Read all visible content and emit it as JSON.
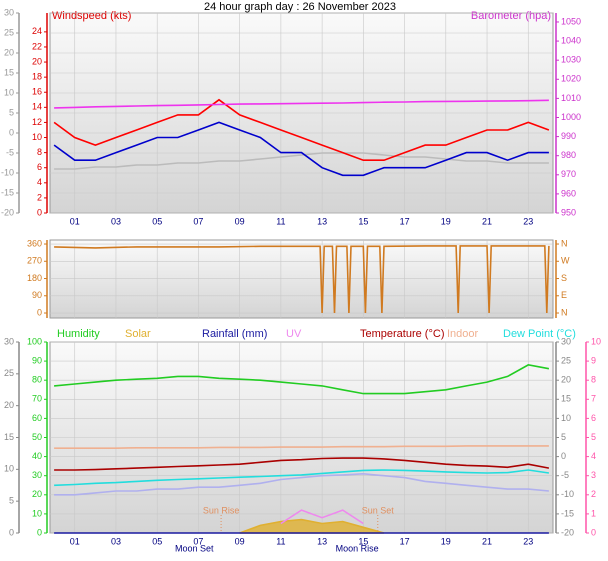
{
  "title": "24 hour graph day : 26 November 2023",
  "chart_data": [
    {
      "type": "line",
      "xlim": [
        -0.2,
        24.2
      ],
      "xticks": [
        {
          "value": 1,
          "label": "01"
        },
        {
          "value": 3,
          "label": "03"
        },
        {
          "value": 5,
          "label": "05"
        },
        {
          "value": 7,
          "label": "07"
        },
        {
          "value": 9,
          "label": "09"
        },
        {
          "value": 11,
          "label": "11"
        },
        {
          "value": 13,
          "label": "13"
        },
        {
          "value": 15,
          "label": "15"
        },
        {
          "value": 17,
          "label": "17"
        },
        {
          "value": 19,
          "label": "19"
        },
        {
          "value": 21,
          "label": "21"
        },
        {
          "value": 23,
          "label": "23"
        }
      ],
      "grid": "y3",
      "axes": [
        {
          "id": "y",
          "label": "Windspeed (kts)",
          "color": "#dd0000",
          "side": "left",
          "lim": [
            0,
            26.5
          ],
          "ticks": [
            0,
            2,
            4,
            6,
            8,
            10,
            12,
            14,
            16,
            18,
            20,
            22,
            24
          ]
        },
        {
          "id": "y2",
          "label": "Barometer (hpa)",
          "color": "#cc33cc",
          "side": "right",
          "lim": [
            950,
            1054.7
          ],
          "ticks": [
            950,
            960,
            970,
            980,
            990,
            1000,
            1010,
            1020,
            1030,
            1040,
            1050
          ]
        },
        {
          "id": "y3",
          "color": "#999999",
          "side": "left",
          "lim": [
            -20,
            30
          ],
          "ticks": [
            -20,
            -15,
            -10,
            -5,
            0,
            5,
            10,
            15,
            20,
            25,
            30
          ]
        }
      ],
      "x": [
        0,
        1,
        2,
        3,
        4,
        5,
        6,
        7,
        8,
        9,
        10,
        11,
        12,
        13,
        14,
        15,
        16,
        17,
        18,
        19,
        20,
        21,
        22,
        23,
        24
      ],
      "series": [
        {
          "color": "#bbbbbb",
          "axis": "y3",
          "values": [
            -9,
            -9,
            -8.5,
            -8.5,
            -8,
            -8,
            -7.5,
            -7.5,
            -7,
            -7,
            -6.5,
            -6,
            -5.5,
            -5,
            -5,
            -5,
            -5.5,
            -6,
            -6,
            -6.5,
            -7,
            -7,
            -7.5,
            -7.5,
            -7.5
          ]
        },
        {
          "color": "#ff0000",
          "axis": "y",
          "values": [
            12,
            10,
            9,
            10,
            11,
            12,
            13,
            13,
            15,
            13,
            12,
            11,
            10,
            9,
            8,
            7,
            7,
            8,
            9,
            9,
            10,
            11,
            11,
            12,
            11
          ]
        },
        {
          "color": "#0000cc",
          "axis": "y",
          "values": [
            9,
            7,
            7,
            8,
            9,
            10,
            10,
            11,
            12,
            11,
            10,
            8,
            8,
            6,
            5,
            5,
            6,
            6,
            6,
            7,
            8,
            8,
            7,
            8,
            8
          ]
        },
        {
          "color": "#ee33ee",
          "axis": "y2",
          "values": [
            1005,
            1005.3,
            1005.6,
            1005.8,
            1006,
            1006.2,
            1006.4,
            1006.6,
            1006.8,
            1007,
            1007.1,
            1007.2,
            1007.4,
            1007.5,
            1007.6,
            1007.8,
            1008,
            1008.1,
            1008.3,
            1008.4,
            1008.5,
            1008.6,
            1008.7,
            1008.8,
            1009
          ]
        }
      ]
    },
    {
      "type": "line",
      "xlim": [
        -0.2,
        24.2
      ],
      "xticks": [
        1,
        3,
        5,
        7,
        9,
        11,
        13,
        15,
        17,
        19,
        21,
        23
      ],
      "grid": "y",
      "axes": [
        {
          "id": "y",
          "color": "#d07a20",
          "side": "left",
          "lim": [
            -26,
            381
          ],
          "ticks": [
            0,
            90,
            180,
            270,
            360
          ]
        },
        {
          "id": "y2",
          "color": "#d07a20",
          "side": "right",
          "lim": [
            -26,
            381
          ],
          "ticks": [
            {
              "value": 0,
              "label": "N"
            },
            {
              "value": 90,
              "label": "E"
            },
            {
              "value": 180,
              "label": "S"
            },
            {
              "value": 270,
              "label": "W"
            },
            {
              "value": 360,
              "label": "N"
            }
          ]
        }
      ],
      "hide_xtick_labels": true,
      "x": [
        0,
        2,
        4,
        6,
        8,
        10,
        12,
        12.9,
        13,
        13.1,
        13.5,
        13.6,
        13.7,
        14.2,
        14.3,
        14.4,
        15,
        15.1,
        15.2,
        15.8,
        15.9,
        16,
        18,
        19.5,
        19.6,
        19.7,
        21,
        21.1,
        21.2,
        22,
        23.8,
        23.9,
        24
      ],
      "series": [
        {
          "color": "#d07a20",
          "axis": "y",
          "values": [
            345,
            340,
            345,
            345,
            345,
            348,
            348,
            348,
            0,
            348,
            348,
            0,
            348,
            348,
            0,
            348,
            348,
            0,
            348,
            348,
            0,
            348,
            350,
            350,
            0,
            350,
            350,
            0,
            350,
            350,
            350,
            0,
            350
          ]
        }
      ]
    },
    {
      "type": "line",
      "xlim": [
        -0.2,
        24.2
      ],
      "xticks": [
        {
          "value": 1,
          "label": "01"
        },
        {
          "value": 3,
          "label": "03"
        },
        {
          "value": 5,
          "label": "05"
        },
        {
          "value": 7,
          "label": "07"
        },
        {
          "value": 9,
          "label": "09"
        },
        {
          "value": 11,
          "label": "11"
        },
        {
          "value": 13,
          "label": "13"
        },
        {
          "value": 15,
          "label": "15"
        },
        {
          "value": 17,
          "label": "17"
        },
        {
          "value": 19,
          "label": "19"
        },
        {
          "value": 21,
          "label": "21"
        },
        {
          "value": 23,
          "label": "23"
        }
      ],
      "grid": "y",
      "axes": [
        {
          "id": "y",
          "color": "#22cc22",
          "side": "left",
          "lim": [
            0,
            100
          ],
          "ticks": [
            0,
            10,
            20,
            30,
            40,
            50,
            60,
            70,
            80,
            90,
            100
          ]
        },
        {
          "id": "y3",
          "color": "#888888",
          "side": "left",
          "lim": [
            0,
            30
          ],
          "ticks": [
            0,
            5,
            10,
            15,
            20,
            25,
            30
          ]
        },
        {
          "id": "y2",
          "color": "#888888",
          "side": "right",
          "lim": [
            -20,
            30
          ],
          "ticks": [
            -20,
            -15,
            -10,
            -5,
            0,
            5,
            10,
            15,
            20,
            25,
            30
          ]
        },
        {
          "id": "y4",
          "color": "#ff55aa",
          "side": "right",
          "lim": [
            0,
            10
          ],
          "ticks": [
            0,
            1,
            2,
            3,
            4,
            5,
            6,
            7,
            8,
            9,
            10
          ]
        }
      ],
      "x": [
        0,
        1,
        2,
        3,
        4,
        5,
        6,
        7,
        8,
        9,
        10,
        11,
        12,
        13,
        14,
        15,
        16,
        17,
        18,
        19,
        20,
        21,
        22,
        23,
        24
      ],
      "series": [
        {
          "name": "Humidity",
          "color": "#22cc22",
          "axis": "y",
          "values": [
            77,
            78,
            79,
            80,
            80.5,
            81,
            82,
            82,
            81,
            80.5,
            80,
            79,
            78,
            77,
            75,
            73,
            73,
            73,
            74,
            75,
            77,
            79,
            82,
            88,
            86
          ]
        },
        {
          "name": "Solar",
          "color": "#e0b030",
          "axis": "y",
          "area": true,
          "values": [
            null,
            null,
            null,
            null,
            null,
            null,
            null,
            null,
            null,
            0,
            4,
            6,
            7,
            5,
            6,
            3,
            0,
            null,
            null,
            null,
            null,
            null,
            null,
            null,
            null
          ]
        },
        {
          "name": "Rainfall (mm)",
          "color": "#1a1aa0",
          "axis": "y3",
          "values": [
            0,
            0,
            0,
            0,
            0,
            0,
            0,
            0,
            0,
            0,
            0,
            0,
            0,
            0,
            0,
            0,
            0,
            0,
            0,
            0,
            0,
            0,
            0,
            0,
            0
          ]
        },
        {
          "name": "UV",
          "color": "#ee88ee",
          "axis": "y4",
          "values": [
            null,
            null,
            null,
            null,
            null,
            null,
            null,
            null,
            null,
            null,
            null,
            0.5,
            1.2,
            0.8,
            1.2,
            0.5,
            null,
            null,
            null,
            null,
            null,
            null,
            null,
            null,
            null
          ]
        },
        {
          "name": "Temperature (°C)",
          "color": "#aa0000",
          "axis": "y2",
          "values": [
            -3.5,
            -3.5,
            -3.4,
            -3.2,
            -3,
            -2.8,
            -2.6,
            -2.4,
            -2.2,
            -2,
            -1.5,
            -1,
            -0.8,
            -0.5,
            -0.4,
            -0.4,
            -0.6,
            -1,
            -1.5,
            -2,
            -2.3,
            -2.5,
            -2.8,
            -2,
            -3
          ]
        },
        {
          "name": "Indoor",
          "color": "#f0b090",
          "axis": "y2",
          "values": [
            2.2,
            2.2,
            2.2,
            2.2,
            2.3,
            2.3,
            2.3,
            2.3,
            2.4,
            2.4,
            2.4,
            2.5,
            2.5,
            2.5,
            2.6,
            2.6,
            2.6,
            2.7,
            2.7,
            2.7,
            2.8,
            2.8,
            2.8,
            2.8,
            2.8
          ]
        },
        {
          "name": "Dew Point (°C)",
          "color": "#22dddd",
          "axis": "y2",
          "values": [
            -7.5,
            -7.3,
            -7,
            -6.8,
            -6.5,
            -6.2,
            -6,
            -5.8,
            -5.6,
            -5.4,
            -5.2,
            -5,
            -4.8,
            -4.4,
            -4,
            -3.6,
            -3.5,
            -3.6,
            -3.8,
            -4,
            -4.2,
            -4.3,
            -4.2,
            -3.5,
            -4.3
          ]
        },
        {
          "color": "#b0b0ee",
          "axis": "y2",
          "values": [
            -10,
            -10,
            -9.5,
            -9,
            -9,
            -8.5,
            -8.5,
            -8,
            -8,
            -7.5,
            -7,
            -6,
            -5.5,
            -5,
            -4.8,
            -4.5,
            -5,
            -5.5,
            -6.5,
            -7,
            -7.5,
            -8,
            -8.5,
            -8.5,
            -9
          ]
        }
      ],
      "sun_events": [
        {
          "label": "Sun Rise",
          "x": 8.1
        },
        {
          "label": "Sun Set",
          "x": 15.7
        }
      ],
      "moon_events": [
        {
          "label": "Moon Set",
          "x": 6.8
        },
        {
          "label": "Moon Rise",
          "x": 14.7
        }
      ]
    }
  ]
}
